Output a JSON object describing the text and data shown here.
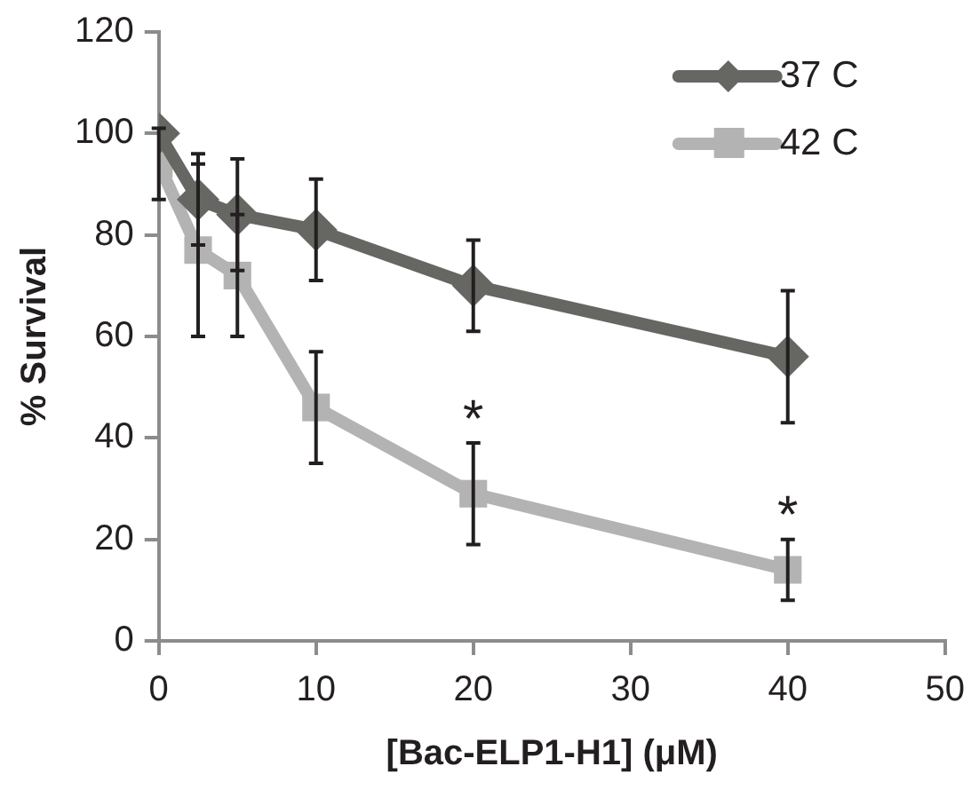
{
  "chart_data": {
    "type": "line",
    "xlabel": "[Bac-ELP1-H1] (μM)",
    "ylabel": "% Survival",
    "x": [
      0,
      2.5,
      5,
      10,
      20,
      40
    ],
    "series": [
      {
        "name": "37 C",
        "color": "#666662",
        "marker": "diamond",
        "values": [
          100,
          87,
          84,
          81,
          70,
          56
        ],
        "errors": [
          null,
          9,
          11,
          10,
          9,
          13
        ]
      },
      {
        "name": "42 C",
        "color": "#b3b3b3",
        "marker": "square",
        "values": [
          94,
          77,
          72,
          46,
          29,
          14
        ],
        "errors": [
          7,
          17,
          12,
          11,
          10,
          6
        ]
      }
    ],
    "xlim": [
      0,
      50
    ],
    "xticks": [
      0,
      10,
      20,
      30,
      40,
      50
    ],
    "ylim": [
      0,
      120
    ],
    "yticks": [
      0,
      20,
      40,
      60,
      80,
      100,
      120
    ],
    "grid": false,
    "legend": "top right",
    "annotations": [
      {
        "text": "*",
        "x": 20,
        "y": 29
      },
      {
        "text": "*",
        "x": 40,
        "y": 14
      }
    ]
  }
}
